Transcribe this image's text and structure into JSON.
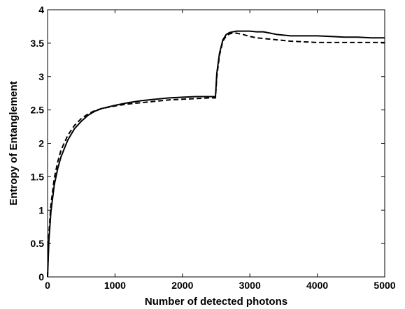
{
  "chart_data": {
    "type": "line",
    "title": "",
    "xlabel": "Number of detected photons",
    "ylabel": "Entropy of Entanglement",
    "xlim": [
      0,
      5000
    ],
    "ylim": [
      0,
      4
    ],
    "xticks": [
      0,
      1000,
      2000,
      3000,
      4000,
      5000
    ],
    "yticks": [
      0,
      0.5,
      1,
      1.5,
      2,
      2.5,
      3,
      3.5,
      4
    ],
    "xtick_labels": [
      "0",
      "1000",
      "2000",
      "3000",
      "4000",
      "5000"
    ],
    "ytick_labels": [
      "0",
      "0.5",
      "1",
      "1.5",
      "2",
      "2.5",
      "3",
      "3.5",
      "4"
    ],
    "grid": false,
    "legend": "none",
    "series": [
      {
        "style": "solid",
        "color": "#000000",
        "x": [
          0,
          20,
          50,
          100,
          150,
          200,
          300,
          400,
          500,
          600,
          700,
          800,
          1000,
          1200,
          1400,
          1600,
          1800,
          2000,
          2200,
          2400,
          2490,
          2510,
          2550,
          2600,
          2650,
          2700,
          2750,
          2800,
          2900,
          3000,
          3100,
          3200,
          3300,
          3400,
          3500,
          3600,
          3800,
          4000,
          4200,
          4400,
          4600,
          4800,
          5000
        ],
        "values": [
          0,
          0.55,
          0.98,
          1.38,
          1.62,
          1.8,
          2.05,
          2.22,
          2.33,
          2.42,
          2.48,
          2.52,
          2.57,
          2.61,
          2.64,
          2.66,
          2.68,
          2.69,
          2.7,
          2.7,
          2.7,
          3.05,
          3.35,
          3.55,
          3.63,
          3.66,
          3.67,
          3.68,
          3.68,
          3.68,
          3.67,
          3.67,
          3.65,
          3.63,
          3.62,
          3.61,
          3.61,
          3.61,
          3.6,
          3.59,
          3.59,
          3.58,
          3.58
        ]
      },
      {
        "style": "dashed",
        "color": "#000000",
        "x": [
          0,
          20,
          50,
          100,
          150,
          200,
          300,
          400,
          500,
          600,
          700,
          800,
          1000,
          1200,
          1400,
          1600,
          1800,
          2000,
          2200,
          2400,
          2490,
          2510,
          2550,
          2600,
          2650,
          2700,
          2750,
          2800,
          2900,
          3000,
          3100,
          3200,
          3300,
          3400,
          3500,
          3600,
          3800,
          4000,
          4200,
          4400,
          4600,
          4800,
          5000
        ],
        "values": [
          0,
          0.65,
          1.08,
          1.48,
          1.72,
          1.9,
          2.12,
          2.27,
          2.37,
          2.44,
          2.49,
          2.52,
          2.56,
          2.59,
          2.61,
          2.63,
          2.65,
          2.66,
          2.67,
          2.68,
          2.68,
          3.0,
          3.32,
          3.53,
          3.61,
          3.64,
          3.65,
          3.65,
          3.63,
          3.6,
          3.58,
          3.57,
          3.56,
          3.55,
          3.54,
          3.53,
          3.52,
          3.51,
          3.51,
          3.51,
          3.51,
          3.51,
          3.51
        ]
      }
    ]
  }
}
